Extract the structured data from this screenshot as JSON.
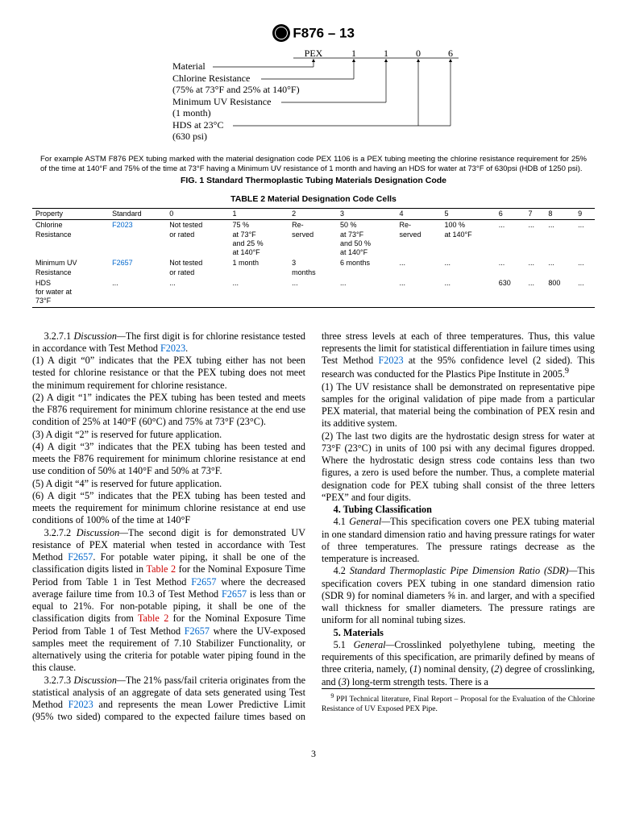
{
  "header": {
    "standard_no": "F876 – 13"
  },
  "fig1": {
    "header_labels": [
      "PEX",
      "1",
      "1",
      "0",
      "6"
    ],
    "rows": [
      {
        "label": "Material"
      },
      {
        "label": "Chlorine Resistance"
      },
      {
        "sub": "(75% at 73°F and 25% at 140°F)"
      },
      {
        "label": "Minimum UV Resistance"
      },
      {
        "sub": "(1 month)"
      },
      {
        "label": "HDS at 23°C"
      },
      {
        "sub": "(630 psi)"
      }
    ],
    "note": "For example ASTM F876 PEX tubing marked with the material designation code PEX 1106 is a PEX tubing meeting the chlorine resistance requirement for 25% of the time at 140°F and 75% of the time at 73°F having a Minimum UV resistance of 1 month and having an HDS for water at 73°F of 630psi (HDB of 1250 psi).",
    "caption": "FIG. 1 Standard Thermoplastic Tubing Materials Designation Code"
  },
  "table2": {
    "title": "TABLE 2 Material Designation Code Cells",
    "columns": [
      "Property",
      "Standard",
      "0",
      "1",
      "2",
      "3",
      "4",
      "5",
      "6",
      "7",
      "8",
      "9"
    ],
    "rows": [
      {
        "property": "Chlorine\nResistance",
        "standard": "F2023",
        "cells": [
          "Not tested\nor rated",
          "75 %\nat 73°F\nand 25 %\nat 140°F",
          "Re-\nserved",
          "50 %\nat 73°F\nand 50 %\nat 140°F",
          "Re-\nserved",
          "100 %\nat 140°F",
          "...",
          "...",
          "...",
          "..."
        ]
      },
      {
        "property": "Minimum UV\nResistance",
        "standard": "F2657",
        "cells": [
          "Not tested\nor rated",
          "1 month",
          "3\nmonths",
          "6 months",
          "...",
          "...",
          "...",
          "...",
          "...",
          "..."
        ]
      },
      {
        "property": "HDS\nfor water at\n73°F",
        "standard": "...",
        "cells": [
          "...",
          "...",
          "...",
          "...",
          "...",
          "...",
          "630",
          "...",
          "800",
          "..."
        ]
      }
    ]
  },
  "body": {
    "p1_lead": "3.2.7.1 ",
    "p1_italic": "Discussion—",
    "p1_rest": "The first digit is for chlorine resistance tested in accordance with Test Method ",
    "p1_link": "F2023",
    "p1_end": ".",
    "p2": "(1) A digit “0” indicates that the PEX tubing either has not been tested for chlorine resistance or that the PEX tubing does not meet the minimum requirement for chlorine resistance.",
    "p3": "(2) A digit “1” indicates the PEX tubing has been tested and meets the F876 requirement for minimum chlorine resistance at the end use condition of 25% at 140°F (60°C) and 75% at 73°F (23°C).",
    "p4": "(3) A digit “2” is reserved for future application.",
    "p5": "(4) A digit “3” indicates that the PEX tubing has been tested and meets the F876 requirement for minimum chlorine resistance at end use condition of 50% at 140°F and 50% at 73°F.",
    "p6": "(5) A digit “4” is reserved for future application.",
    "p7": "(6) A digit “5” indicates that the PEX tubing has been tested and meets the requirement for minimum chlorine resistance at end use conditions of 100% of the time at 140°F",
    "p8_lead": "3.2.7.2 ",
    "p8_italic": "Discussion—",
    "p8_a": "The second digit is for demonstrated UV resistance of PEX material when tested in accordance with Test Method ",
    "p8_link1": "F2657",
    "p8_b": ". For potable water piping, it shall be one of the classification digits listed in ",
    "p8_link2": "Table 2",
    "p8_c": " for the Nominal Exposure Time Period from Table 1 in Test Method ",
    "p8_link3": "F2657",
    "p8_d": " where the decreased average failure time from 10.3 of Test Method ",
    "p8_link4": "F2657",
    "p8_e": " is less than or equal to 21%. For non-potable piping, it shall be one of the classification digits from ",
    "p8_link5": "Table 2",
    "p8_f": " for the Nominal Exposure Time Period from Table 1 of Test Method ",
    "p8_link6": "F2657",
    "p8_g": " where the UV-exposed samples meet the requirement of 7.10 Stabilizer Functionality, or alternatively using the criteria for potable water piping found in the this clause.",
    "p9_lead": "3.2.7.3 ",
    "p9_italic": "Discussion—",
    "p9_a": "The 21% pass/fail criteria originates from the statistical analysis of an aggregate of data sets generated using Test Method ",
    "p9_link": "F2023",
    "p9_b": " and represents the mean Lower Predictive Limit (95% two sided) compared to the expected failure times based on three stress levels at each of ",
    "p10_a": "three temperatures. Thus, this value represents the limit for statistical differentiation in failure times using Test Method ",
    "p10_link": "F2023",
    "p10_b": " at the 95% confidence level (2 sided). This research was conducted for the Plastics Pipe Institute in 2005.",
    "p10_sup": "9",
    "p11": "(1) The UV resistance shall be demonstrated on representative pipe samples for the original validation of pipe made from a particular PEX material, that material being the combination of PEX resin and its additive system.",
    "p12": "(2) The last two digits are the hydrostatic design stress for water at 73°F (23°C) in units of 100 psi with any decimal figures dropped. Where the hydrostatic design stress code contains less than two figures, a zero is used before the number. Thus, a complete material designation code for PEX tubing shall consist of the three letters “PEX” and four digits.",
    "sec4_title": "4. Tubing Classification",
    "sec4_1_lead": "4.1 ",
    "sec4_1_italic": "General—",
    "sec4_1_rest": "This specification covers one PEX tubing material in one standard dimension ratio and having pressure ratings for water of three temperatures. The pressure ratings decrease as the temperature is increased.",
    "sec4_2_lead": "4.2 ",
    "sec4_2_italic": "Standard Thermoplastic Pipe Dimension Ratio (SDR)—",
    "sec4_2_rest": "This specification covers PEX tubing in one standard dimension ratio (SDR 9) for nominal diameters ⅝ in. and larger, and with a specified wall thickness for smaller diameters. The pressure ratings are uniform for all nominal tubing sizes.",
    "sec5_title": "5. Materials",
    "sec5_1_lead": "5.1 ",
    "sec5_1_italic": "General—",
    "sec5_1_a": "Crosslinked polyethylene tubing, meeting the requirements of this specification, are primarily defined by means of three criteria, namely, (",
    "sec5_1_i1": "1",
    "sec5_1_b": ") nominal density, (",
    "sec5_1_i2": "2",
    "sec5_1_c": ") degree of crosslinking, and (",
    "sec5_1_i3": "3",
    "sec5_1_d": ") long-term strength tests. There is a",
    "footnote_sup": "9",
    "footnote": " PPI Technical literature, Final Report – Proposal for the Evaluation of the Chlorine Resistance of UV Exposed PEX Pipe."
  },
  "page_number": "3"
}
